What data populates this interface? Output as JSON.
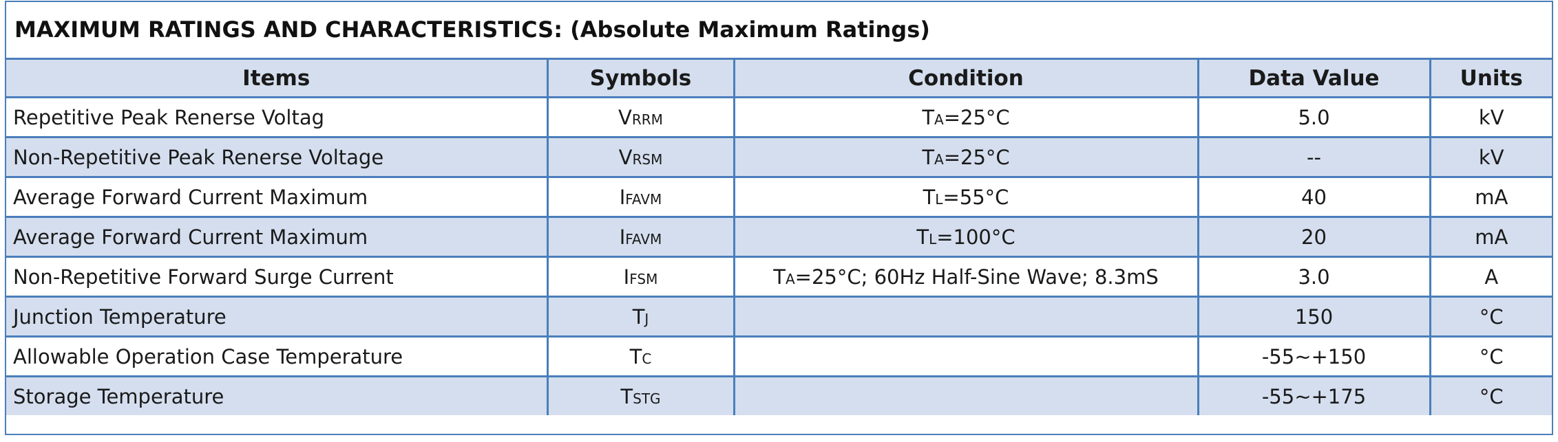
{
  "title": "MAXIMUM RATINGS AND CHARACTERISTICS:  (Absolute Maximum Ratings)",
  "table": {
    "headers": [
      "Items",
      "Symbols",
      "Condition",
      "Data Value",
      "Units"
    ],
    "rows": [
      {
        "item": "Repetitive Peak Renerse Voltag",
        "symbol": {
          "main": "V",
          "sub": "RRM"
        },
        "condition": {
          "main": "T",
          "sub": "A",
          "rest": "=25°C"
        },
        "value": "5.0",
        "unit": "kV"
      },
      {
        "item": "Non-Repetitive Peak Renerse Voltage",
        "symbol": {
          "main": "V",
          "sub": "RSM"
        },
        "condition": {
          "main": "T",
          "sub": "A",
          "rest": "=25°C"
        },
        "value": "--",
        "unit": "kV"
      },
      {
        "item": "Average Forward Current Maximum",
        "symbol": {
          "main": "I",
          "sub": "FAVM"
        },
        "condition": {
          "main": "T",
          "sub": "L",
          "rest": "=55°C"
        },
        "value": "40",
        "unit": "mA"
      },
      {
        "item": "Average Forward Current Maximum",
        "symbol": {
          "main": "I",
          "sub": "FAVM"
        },
        "condition": {
          "main": "T",
          "sub": "L",
          "rest": "=100°C"
        },
        "value": "20",
        "unit": "mA"
      },
      {
        "item": "Non-Repetitive Forward Surge Current",
        "symbol": {
          "main": "I",
          "sub": "FSM"
        },
        "condition": {
          "main": "T",
          "sub": "A",
          "rest": "=25°C; 60Hz Half-Sine Wave; 8.3mS"
        },
        "value": "3.0",
        "unit": "A"
      },
      {
        "item": "Junction Temperature",
        "symbol": {
          "main": "T",
          "sub": "J"
        },
        "condition": null,
        "value": "150",
        "unit": "°C"
      },
      {
        "item": "Allowable Operation Case Temperature",
        "symbol": {
          "main": "T",
          "sub": "C"
        },
        "condition": null,
        "value": "-55~+150",
        "unit": "°C"
      },
      {
        "item": "Storage Temperature",
        "symbol": {
          "main": "T",
          "sub": "STG"
        },
        "condition": null,
        "value": "-55~+175",
        "unit": "°C"
      }
    ]
  }
}
